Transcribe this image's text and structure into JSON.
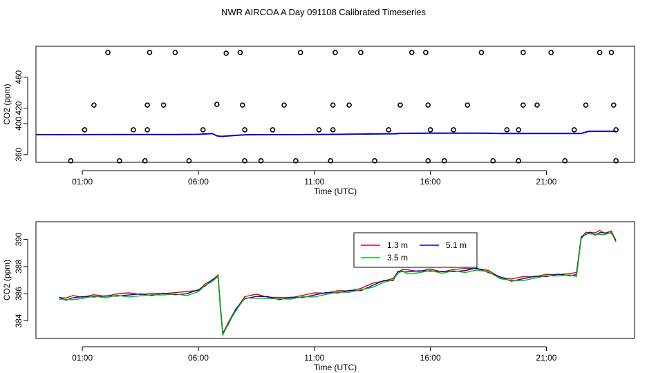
{
  "title": "NWR AIRCOA A  Day 091108  Calibrated Timeseries",
  "colors": {
    "red": "#e00000",
    "green": "#00bb00",
    "blue": "#0000cc",
    "axis": "#000000"
  },
  "chart_data": [
    {
      "type": "scatter",
      "name": "top-panel",
      "xlabel": "Time (UTC)",
      "ylabel": "CO2 (ppm)",
      "xlim": [
        -1.0,
        24.8
      ],
      "ylim": [
        350,
        500
      ],
      "xticks": [
        1,
        6,
        11,
        16,
        21
      ],
      "xtick_labels": [
        "01:00",
        "06:00",
        "11:00",
        "16:00",
        "21:00"
      ],
      "yticks": [
        360,
        400,
        420,
        460
      ],
      "ytick_labels": [
        "360",
        "400",
        "420",
        "460"
      ],
      "scatter_series": [
        {
          "name": "calibration points",
          "marker": "open-circle",
          "points": [
            [
              0.5,
              352
            ],
            [
              1.1,
              392
            ],
            [
              1.5,
              424
            ],
            [
              2.1,
              492
            ],
            [
              2.6,
              352
            ],
            [
              3.2,
              392
            ],
            [
              3.7,
              352
            ],
            [
              3.8,
              392
            ],
            [
              3.8,
              424
            ],
            [
              3.9,
              492
            ],
            [
              4.5,
              424
            ],
            [
              5.0,
              492
            ],
            [
              5.6,
              352
            ],
            [
              6.2,
              392
            ],
            [
              6.8,
              425
            ],
            [
              7.2,
              491
            ],
            [
              7.8,
              492
            ],
            [
              7.9,
              424
            ],
            [
              8.0,
              392
            ],
            [
              8.0,
              352
            ],
            [
              8.7,
              352
            ],
            [
              9.2,
              392
            ],
            [
              9.7,
              424
            ],
            [
              10.2,
              352
            ],
            [
              10.4,
              492
            ],
            [
              11.2,
              392
            ],
            [
              11.8,
              392
            ],
            [
              11.8,
              424
            ],
            [
              11.9,
              492
            ],
            [
              11.7,
              352
            ],
            [
              12.5,
              424
            ],
            [
              13.0,
              492
            ],
            [
              13.6,
              352
            ],
            [
              14.2,
              392
            ],
            [
              14.7,
              424
            ],
            [
              15.2,
              492
            ],
            [
              15.8,
              492
            ],
            [
              15.9,
              424
            ],
            [
              16.0,
              392
            ],
            [
              15.9,
              352
            ],
            [
              16.6,
              352
            ],
            [
              17.0,
              392
            ],
            [
              17.6,
              424
            ],
            [
              18.2,
              492
            ],
            [
              18.7,
              352
            ],
            [
              19.3,
              392
            ],
            [
              19.8,
              392
            ],
            [
              19.8,
              352
            ],
            [
              20.0,
              424
            ],
            [
              20.0,
              492
            ],
            [
              20.6,
              424
            ],
            [
              21.2,
              492
            ],
            [
              21.8,
              352
            ],
            [
              22.2,
              392
            ],
            [
              22.7,
              424
            ],
            [
              23.3,
              492
            ],
            [
              23.8,
              492
            ],
            [
              23.9,
              424
            ],
            [
              24.0,
              392
            ],
            [
              24.0,
              352
            ]
          ]
        }
      ],
      "line_series": [
        {
          "name": "5.1 m",
          "color": "#0000cc",
          "x": [
            -1,
            0,
            3,
            5,
            6,
            6.6,
            6.8,
            7.0,
            7.5,
            8.0,
            9,
            10,
            11,
            12,
            13,
            14,
            14.5,
            14.7,
            15,
            16,
            17,
            18,
            18.5,
            19,
            20,
            21,
            22,
            22.5,
            22.8,
            23,
            24
          ],
          "y": [
            385.8,
            385.7,
            385.9,
            386.0,
            386.2,
            387.1,
            384.2,
            383.5,
            384.6,
            385.6,
            385.7,
            385.7,
            385.9,
            386.2,
            386.5,
            386.9,
            387.0,
            387.4,
            387.5,
            387.7,
            387.7,
            387.7,
            387.6,
            387.2,
            387.3,
            387.3,
            387.3,
            387.3,
            389.9,
            390.1,
            390.1
          ]
        }
      ]
    },
    {
      "type": "line",
      "name": "bottom-panel",
      "xlabel": "Time (UTC)",
      "ylabel": "CO2 (ppm)",
      "xlim": [
        -1.0,
        24.8
      ],
      "ylim": [
        382.7,
        391.3
      ],
      "xticks": [
        1,
        6,
        11,
        16,
        21
      ],
      "xtick_labels": [
        "01:00",
        "06:00",
        "11:00",
        "16:00",
        "21:00"
      ],
      "yticks": [
        384,
        386,
        388,
        390
      ],
      "ytick_labels": [
        "384",
        "386",
        "388",
        "390"
      ],
      "legend": {
        "position": "top-center",
        "entries": [
          "1.3 m",
          "5.1 m",
          "3.5 m"
        ]
      },
      "series": [
        {
          "name": "1.3 m",
          "color": "#e00000",
          "offset": 0.08
        },
        {
          "name": "5.1 m",
          "color": "#0000cc",
          "offset": 0.0
        },
        {
          "name": "3.5 m",
          "color": "#00bb00",
          "offset": -0.06
        }
      ],
      "x": [
        0.0,
        0.3,
        0.6,
        1.0,
        1.5,
        2.0,
        2.5,
        3.0,
        3.5,
        4.0,
        4.5,
        5.0,
        5.5,
        6.0,
        6.3,
        6.6,
        6.85,
        6.95,
        7.05,
        7.3,
        7.6,
        8.0,
        8.5,
        9.0,
        9.5,
        10.0,
        10.5,
        11.0,
        11.5,
        12.0,
        12.5,
        13.0,
        13.5,
        14.0,
        14.4,
        14.6,
        14.8,
        15.0,
        15.5,
        16.0,
        16.5,
        17.0,
        17.5,
        18.0,
        18.5,
        19.0,
        19.5,
        20.0,
        20.5,
        21.0,
        21.5,
        22.0,
        22.3,
        22.5,
        22.7,
        22.9,
        23.1,
        23.3,
        23.5,
        23.8,
        24.0
      ],
      "y": [
        385.7,
        385.6,
        385.7,
        385.7,
        385.8,
        385.8,
        385.9,
        385.9,
        385.9,
        385.9,
        386.0,
        386.0,
        386.0,
        386.2,
        386.6,
        387.0,
        387.3,
        385.0,
        383.0,
        383.8,
        384.8,
        385.7,
        385.8,
        385.7,
        385.6,
        385.7,
        385.8,
        385.9,
        386.0,
        386.1,
        386.2,
        386.3,
        386.6,
        386.9,
        387.0,
        387.6,
        387.7,
        387.6,
        387.6,
        387.7,
        387.6,
        387.7,
        387.7,
        387.8,
        387.6,
        387.2,
        387.0,
        387.1,
        387.2,
        387.3,
        387.4,
        387.4,
        387.4,
        390.1,
        390.4,
        390.5,
        390.4,
        390.5,
        390.4,
        390.5,
        389.9
      ]
    }
  ]
}
